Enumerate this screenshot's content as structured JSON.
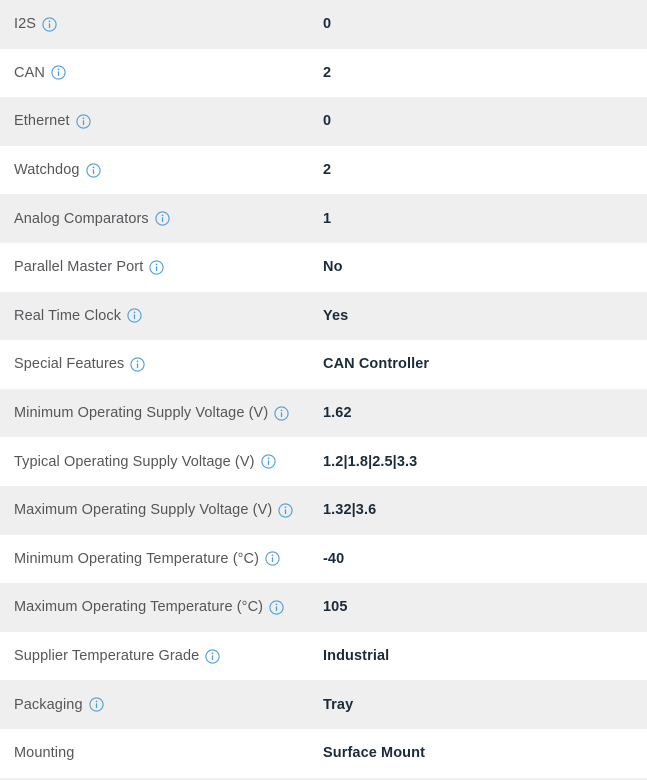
{
  "table": {
    "title": "product-specification-attributes",
    "colors": {
      "row_alt_bg": "#efefef",
      "row_bg": "#ffffff",
      "label_color": "#55565a",
      "value_color": "#1c2b39",
      "info_icon_color": "#4f9ed7"
    },
    "rows": [
      {
        "label": "I2S",
        "value": "0",
        "has_info": true
      },
      {
        "label": "CAN",
        "value": "2",
        "has_info": true
      },
      {
        "label": "Ethernet",
        "value": "0",
        "has_info": true
      },
      {
        "label": "Watchdog",
        "value": "2",
        "has_info": true
      },
      {
        "label": "Analog Comparators",
        "value": "1",
        "has_info": true
      },
      {
        "label": "Parallel Master Port",
        "value": "No",
        "has_info": true
      },
      {
        "label": "Real Time Clock",
        "value": "Yes",
        "has_info": true
      },
      {
        "label": "Special Features",
        "value": "CAN Controller",
        "has_info": true
      },
      {
        "label": "Minimum Operating Supply Voltage (V)",
        "value": "1.62",
        "has_info": true
      },
      {
        "label": "Typical Operating Supply Voltage (V)",
        "value": "1.2|1.8|2.5|3.3",
        "has_info": true
      },
      {
        "label": "Maximum Operating Supply Voltage (V)",
        "value": "1.32|3.6",
        "has_info": true
      },
      {
        "label": "Minimum Operating Temperature (°C)",
        "value": "-40",
        "has_info": true
      },
      {
        "label": "Maximum Operating Temperature (°C)",
        "value": "105",
        "has_info": true
      },
      {
        "label": "Supplier Temperature Grade",
        "value": "Industrial",
        "has_info": true
      },
      {
        "label": "Packaging",
        "value": "Tray",
        "has_info": true
      },
      {
        "label": "Mounting",
        "value": "Surface Mount",
        "has_info": false
      }
    ]
  }
}
